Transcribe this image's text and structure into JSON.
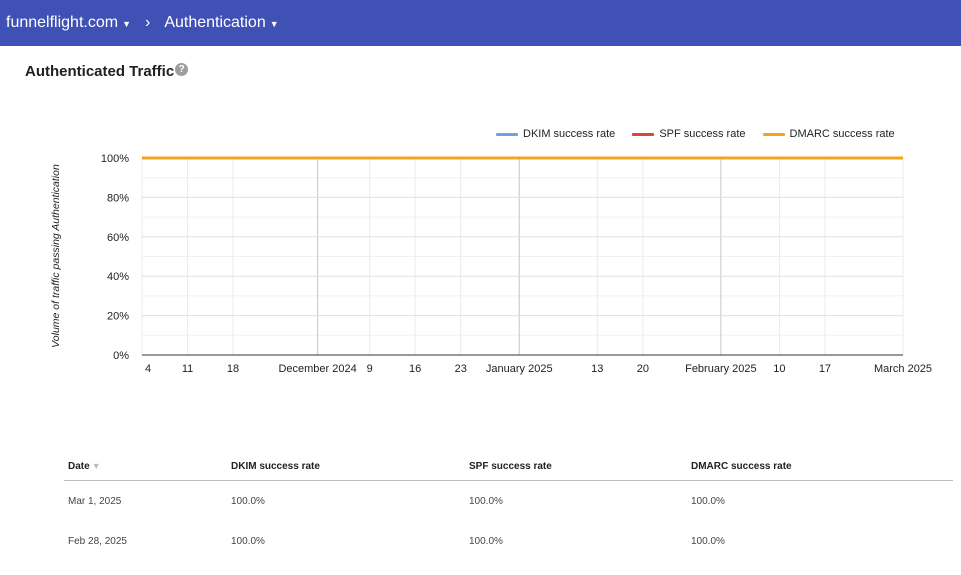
{
  "header": {
    "domain_label": "funnelflight.com",
    "separator": "›",
    "section_label": "Authentication"
  },
  "page": {
    "title": "Authenticated Traffic",
    "help_icon": "?"
  },
  "chart_data": {
    "type": "line",
    "title": "",
    "ylabel": "Volume of traffic passing Authentication",
    "ylim": [
      0,
      100
    ],
    "y_ticks": [
      "0%",
      "20%",
      "40%",
      "60%",
      "80%",
      "100%"
    ],
    "x_range": [
      "2024-11-04",
      "2025-03-01"
    ],
    "x_ticks": [
      {
        "date": "2024-11-04",
        "label": "4"
      },
      {
        "date": "2024-11-11",
        "label": "11"
      },
      {
        "date": "2024-11-18",
        "label": "18"
      },
      {
        "date": "2024-12-01",
        "label": "December 2024"
      },
      {
        "date": "2024-12-09",
        "label": "9"
      },
      {
        "date": "2024-12-16",
        "label": "16"
      },
      {
        "date": "2024-12-23",
        "label": "23"
      },
      {
        "date": "2025-01-01",
        "label": "January 2025"
      },
      {
        "date": "2025-01-13",
        "label": "13"
      },
      {
        "date": "2025-01-20",
        "label": "20"
      },
      {
        "date": "2025-02-01",
        "label": "February 2025"
      },
      {
        "date": "2025-02-10",
        "label": "10"
      },
      {
        "date": "2025-02-17",
        "label": "17"
      },
      {
        "date": "2025-03-01",
        "label": "March 2025"
      }
    ],
    "month_boundaries": [
      "2024-12-01",
      "2025-01-01",
      "2025-02-01"
    ],
    "series": [
      {
        "name": "DKIM success rate",
        "color": "#6fa0e8",
        "x": [
          "2024-11-04",
          "2025-03-01"
        ],
        "values": [
          100,
          100
        ]
      },
      {
        "name": "SPF success rate",
        "color": "#db4437",
        "x": [
          "2024-11-04",
          "2025-03-01"
        ],
        "values": [
          100,
          100
        ]
      },
      {
        "name": "DMARC success rate",
        "color": "#f2a51d",
        "x": [
          "2024-11-04",
          "2025-03-01"
        ],
        "values": [
          100,
          100
        ]
      }
    ],
    "legend_position": "top-right",
    "grid": true
  },
  "table": {
    "columns": [
      "Date",
      "DKIM success rate",
      "SPF success rate",
      "DMARC success rate"
    ],
    "sort_icon": "▼",
    "rows": [
      [
        "Mar 1, 2025",
        "100.0%",
        "100.0%",
        "100.0%"
      ],
      [
        "Feb 28, 2025",
        "100.0%",
        "100.0%",
        "100.0%"
      ]
    ]
  }
}
